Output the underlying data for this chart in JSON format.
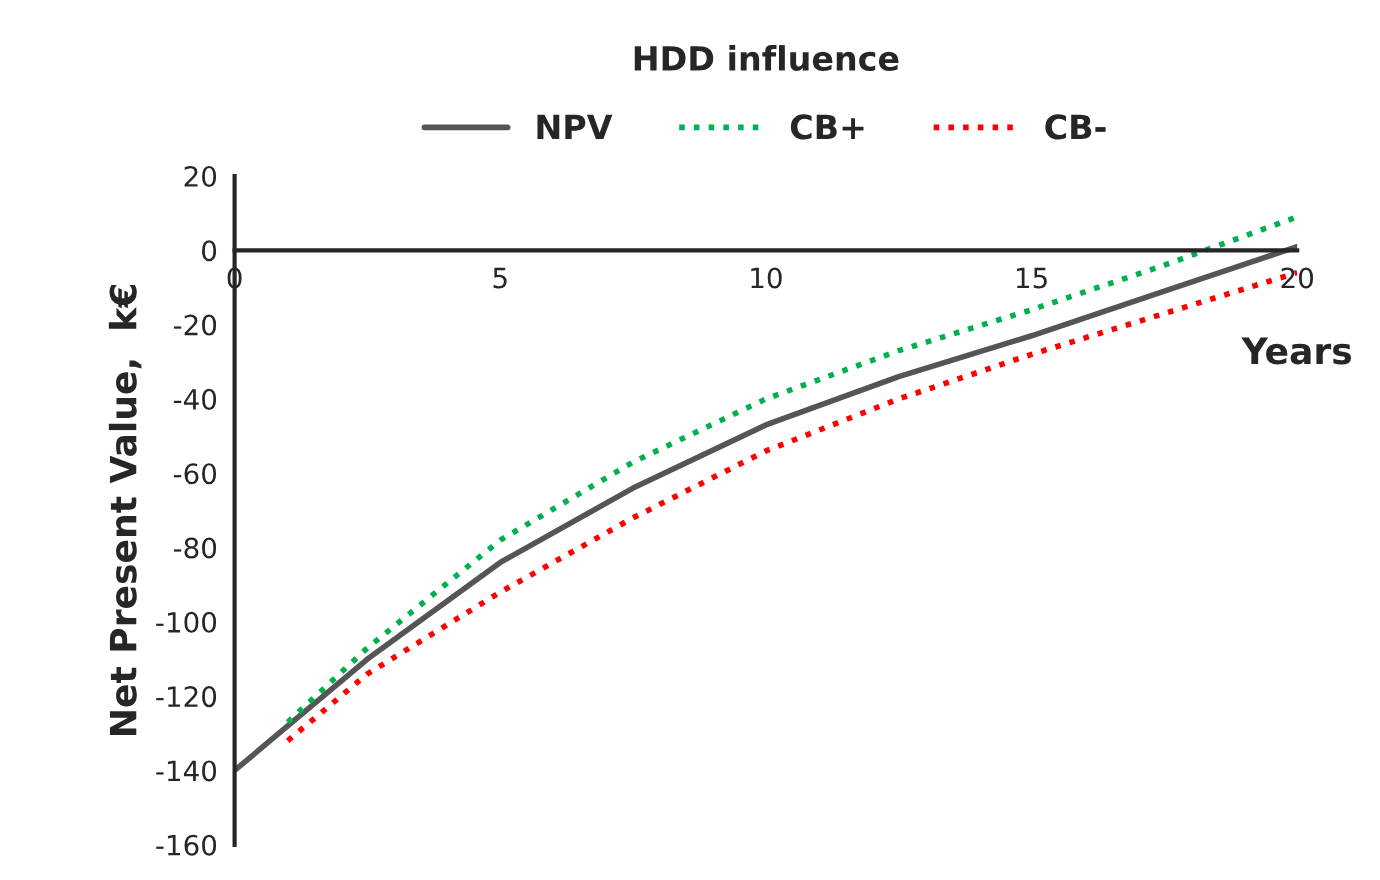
{
  "chart_data": {
    "type": "line",
    "title": "HDD influence",
    "xlabel": "Years",
    "ylabel": "Net Present Value,  k€",
    "xlim": [
      0,
      20
    ],
    "xticks": [
      0,
      5,
      10,
      15,
      20
    ],
    "ylim": [
      -160,
      20
    ],
    "yticks": [
      -160,
      -140,
      -120,
      -100,
      -80,
      -60,
      -40,
      -20,
      0,
      20
    ],
    "grid": false,
    "legend": "top",
    "marker": "none",
    "series": [
      {
        "name": "NPV",
        "color": "#555555",
        "line_style": "solid",
        "x": [
          0,
          2.5,
          5,
          7.5,
          10,
          12.5,
          15,
          17.5,
          20
        ],
        "values": [
          -140,
          -110,
          -84,
          -64,
          -47,
          -34,
          -23,
          -11,
          1
        ]
      },
      {
        "name": "CB+",
        "color": "#00b050",
        "line_style": "dotted",
        "x": [
          1,
          2.5,
          5,
          7.5,
          10,
          12.5,
          15,
          17.5,
          20
        ],
        "values": [
          -127,
          -107,
          -78,
          -57,
          -40,
          -27,
          -16,
          -4,
          9
        ]
      },
      {
        "name": "CB-",
        "color": "#ff0000",
        "line_style": "dotted",
        "x": [
          1,
          2.5,
          5,
          7.5,
          10,
          12.5,
          15,
          17.5,
          20
        ],
        "values": [
          -132,
          -114,
          -92,
          -72,
          -54,
          -40,
          -28,
          -17,
          -6
        ]
      }
    ]
  }
}
